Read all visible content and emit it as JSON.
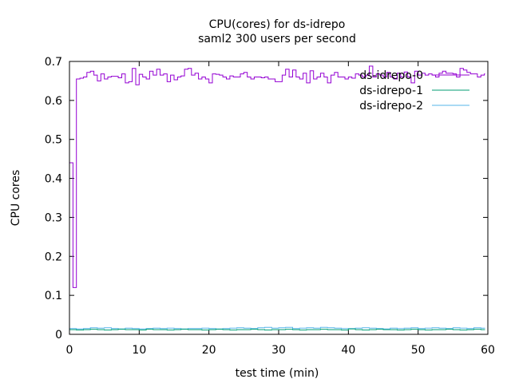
{
  "chart_data": {
    "type": "line",
    "title": "CPU(cores) for ds-idrepo",
    "subtitle": "saml2 300 users per second",
    "xlabel": "test time (min)",
    "ylabel": "CPU cores",
    "xlim": [
      0,
      60
    ],
    "ylim": [
      0,
      0.7
    ],
    "xticks": [
      0,
      10,
      20,
      30,
      40,
      50,
      60
    ],
    "yticks": [
      0,
      0.1,
      0.2,
      0.3,
      0.4,
      0.5,
      0.6,
      0.7
    ],
    "ytick_labels": [
      "0",
      "0.1",
      "0.2",
      "0.3",
      "0.4",
      "0.5",
      "0.6",
      "0.7"
    ],
    "grid": false,
    "legend_position": "top-right",
    "line_style": "steps",
    "series": [
      {
        "name": "ds-idrepo-0",
        "color": "#9400d3",
        "x_step": 0.5,
        "values": [
          0.44,
          0.12,
          0.655,
          0.657,
          0.66,
          0.672,
          0.675,
          0.665,
          0.65,
          0.668,
          0.655,
          0.66,
          0.662,
          0.662,
          0.658,
          0.668,
          0.645,
          0.648,
          0.682,
          0.64,
          0.667,
          0.66,
          0.655,
          0.675,
          0.665,
          0.68,
          0.665,
          0.668,
          0.648,
          0.665,
          0.653,
          0.66,
          0.663,
          0.68,
          0.682,
          0.665,
          0.67,
          0.655,
          0.66,
          0.655,
          0.645,
          0.668,
          0.667,
          0.665,
          0.66,
          0.655,
          0.663,
          0.66,
          0.66,
          0.668,
          0.672,
          0.66,
          0.655,
          0.66,
          0.66,
          0.658,
          0.66,
          0.655,
          0.655,
          0.648,
          0.648,
          0.665,
          0.68,
          0.66,
          0.678,
          0.66,
          0.655,
          0.67,
          0.645,
          0.676,
          0.655,
          0.66,
          0.67,
          0.66,
          0.645,
          0.665,
          0.672,
          0.66,
          0.66,
          0.655,
          0.66,
          0.657,
          0.668,
          0.665,
          0.66,
          0.665,
          0.688,
          0.66,
          0.668,
          0.665,
          0.66,
          0.672,
          0.66,
          0.655,
          0.67,
          0.66,
          0.673,
          0.66,
          0.645,
          0.675,
          0.665,
          0.67,
          0.665,
          0.668,
          0.665,
          0.66,
          0.67,
          0.675,
          0.67,
          0.67,
          0.668,
          0.66,
          0.682,
          0.678,
          0.672,
          0.668,
          0.668,
          0.66,
          0.665,
          0.668
        ]
      },
      {
        "name": "ds-idrepo-1",
        "color": "#009e73",
        "x_step": 1,
        "values": [
          0.012,
          0.011,
          0.012,
          0.013,
          0.012,
          0.011,
          0.012,
          0.013,
          0.012,
          0.012,
          0.011,
          0.013,
          0.012,
          0.012,
          0.011,
          0.012,
          0.013,
          0.012,
          0.012,
          0.011,
          0.012,
          0.013,
          0.012,
          0.011,
          0.012,
          0.012,
          0.013,
          0.012,
          0.011,
          0.012,
          0.012,
          0.013,
          0.012,
          0.011,
          0.012,
          0.012,
          0.013,
          0.012,
          0.012,
          0.011,
          0.014,
          0.012,
          0.011,
          0.012,
          0.013,
          0.012,
          0.012,
          0.011,
          0.012,
          0.013,
          0.012,
          0.011,
          0.012,
          0.012,
          0.013,
          0.012,
          0.011,
          0.012,
          0.013,
          0.012
        ]
      },
      {
        "name": "ds-idrepo-2",
        "color": "#56b4e9",
        "x_step": 1,
        "values": [
          0.015,
          0.014,
          0.015,
          0.017,
          0.016,
          0.017,
          0.015,
          0.014,
          0.016,
          0.015,
          0.014,
          0.015,
          0.016,
          0.015,
          0.016,
          0.015,
          0.014,
          0.015,
          0.015,
          0.016,
          0.015,
          0.014,
          0.015,
          0.016,
          0.017,
          0.016,
          0.015,
          0.017,
          0.018,
          0.016,
          0.017,
          0.018,
          0.015,
          0.016,
          0.017,
          0.016,
          0.018,
          0.017,
          0.016,
          0.015,
          0.015,
          0.016,
          0.017,
          0.016,
          0.015,
          0.014,
          0.016,
          0.015,
          0.016,
          0.017,
          0.015,
          0.016,
          0.017,
          0.016,
          0.015,
          0.017,
          0.016,
          0.015,
          0.017,
          0.016
        ]
      }
    ]
  }
}
